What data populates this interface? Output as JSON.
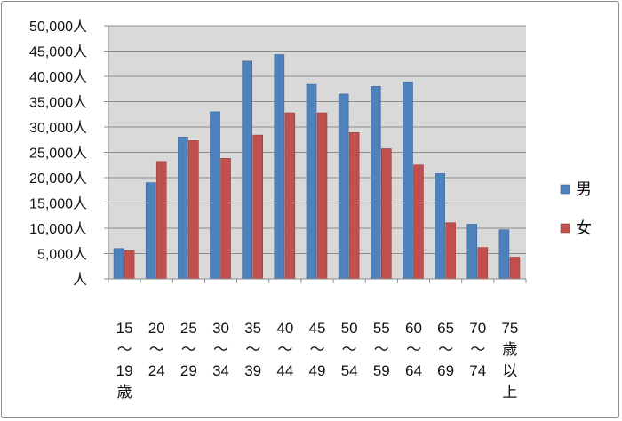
{
  "chart_data": {
    "type": "bar",
    "categories": [
      [
        "15",
        "～",
        "19",
        "歳"
      ],
      [
        "20",
        "～",
        "24"
      ],
      [
        "25",
        "～",
        "29"
      ],
      [
        "30",
        "～",
        "34"
      ],
      [
        "35",
        "～",
        "39"
      ],
      [
        "40",
        "～",
        "44"
      ],
      [
        "45",
        "～",
        "49"
      ],
      [
        "50",
        "～",
        "54"
      ],
      [
        "55",
        "～",
        "59"
      ],
      [
        "60",
        "～",
        "64"
      ],
      [
        "65",
        "～",
        "69"
      ],
      [
        "70",
        "～",
        "74"
      ],
      [
        "75",
        "歳",
        "以",
        "上"
      ]
    ],
    "series": [
      {
        "name": "男",
        "color": "#4f81bd",
        "values": [
          6000,
          19000,
          28000,
          33000,
          43000,
          44300,
          38400,
          36500,
          38000,
          38900,
          20800,
          10800,
          9700
        ]
      },
      {
        "name": "女",
        "color": "#c0504d",
        "values": [
          5600,
          23200,
          27300,
          23800,
          28400,
          32800,
          32800,
          28900,
          25700,
          22500,
          11100,
          6200,
          4300
        ]
      }
    ],
    "ylim": [
      0,
      50000
    ],
    "yticks": [
      "人",
      "5,000人",
      "10,000人",
      "15,000人",
      "20,000人",
      "25,000人",
      "30,000人",
      "35,000人",
      "40,000人",
      "45,000人",
      "50,000人"
    ],
    "ytick_step": 5000,
    "grid": true,
    "plot_background": "#d9d9d9",
    "legend": "right"
  }
}
